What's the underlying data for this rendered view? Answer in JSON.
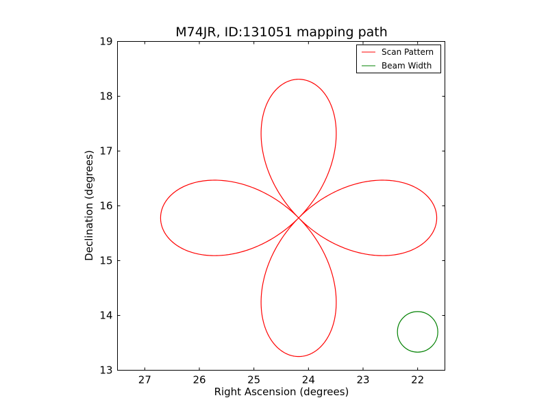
{
  "chart_data": {
    "type": "line",
    "title": "M74JR, ID:131051 mapping path",
    "xlabel": "Right Ascension (degrees)",
    "ylabel": "Declination (degrees)",
    "xlim": [
      27.5,
      21.5
    ],
    "ylim": [
      13,
      19
    ],
    "x_inverted": true,
    "xticks": [
      27,
      26,
      25,
      24,
      23,
      22
    ],
    "yticks": [
      13,
      14,
      15,
      16,
      17,
      18,
      19
    ],
    "grid": false,
    "legend_position": "top-right",
    "series": [
      {
        "name": "Scan Pattern",
        "color": "#ff0000",
        "shape": "four-petal rosette",
        "center": [
          24.18,
          15.78
        ],
        "petal_length": 2.53,
        "path_start": [
          26.35,
          16.37
        ],
        "path_end": [
          26.77,
          15.85
        ]
      },
      {
        "name": "Beam Width",
        "color": "#008000",
        "shape": "circle",
        "center": [
          22.0,
          13.7
        ],
        "radius": 0.37
      }
    ]
  }
}
